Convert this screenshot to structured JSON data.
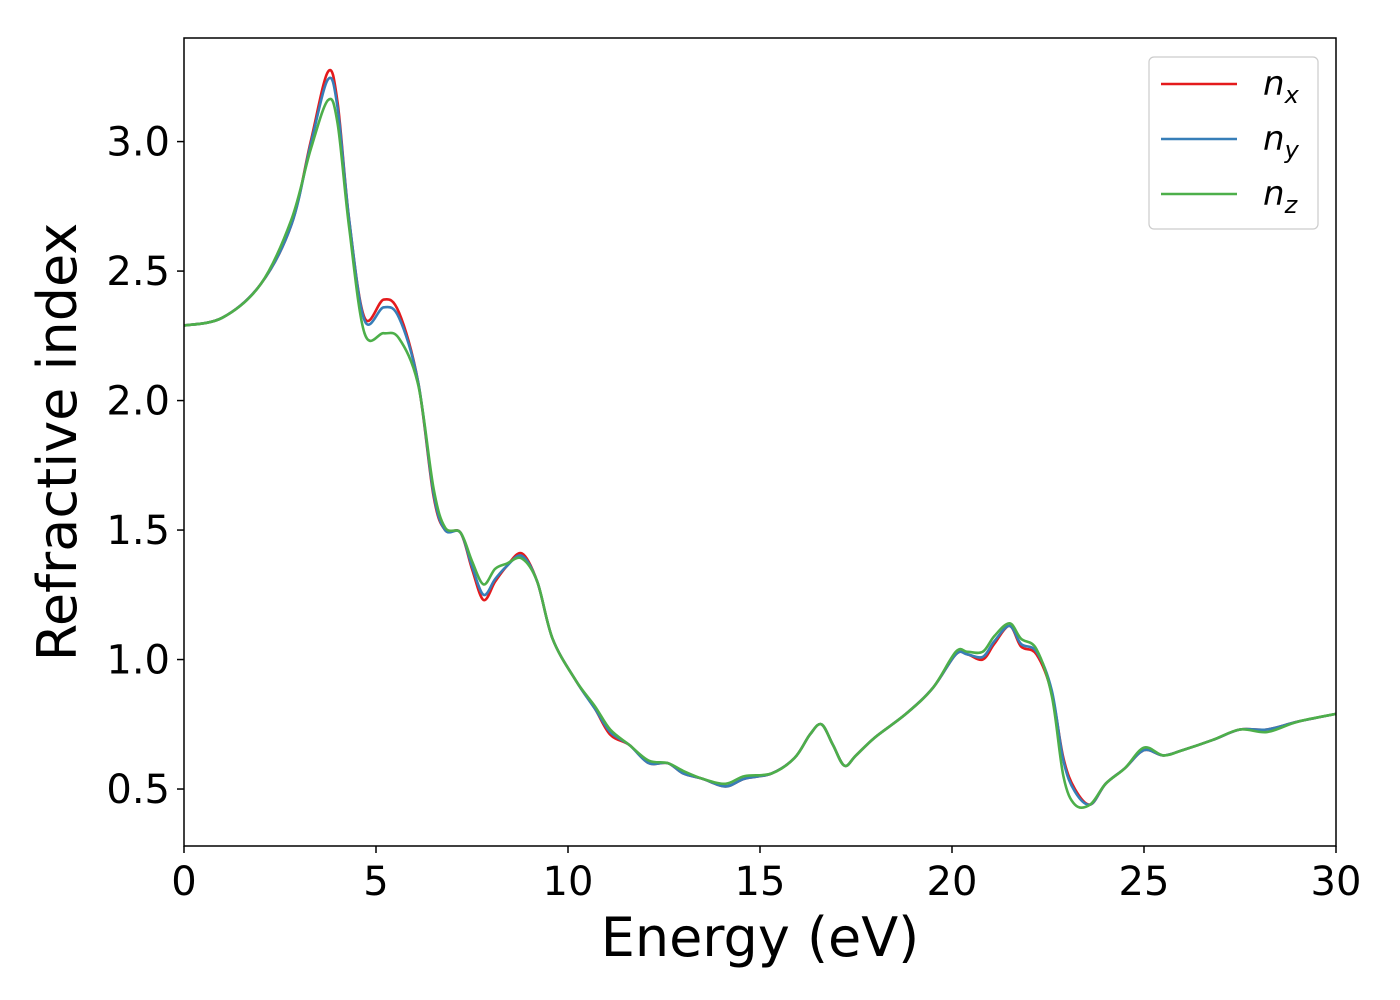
{
  "chart_data": {
    "type": "line",
    "xlabel": "Energy (eV)",
    "ylabel": "Refractive index",
    "xlim": [
      0,
      30
    ],
    "ylim": [
      0.28,
      3.4
    ],
    "xticks": [
      "0",
      "5",
      "10",
      "15",
      "20",
      "25",
      "30"
    ],
    "yticks": [
      "0.5",
      "1.0",
      "1.5",
      "2.0",
      "2.5",
      "3.0"
    ],
    "grid": false,
    "legend_position": "top-right",
    "series": [
      {
        "name": "n",
        "subscript": "x",
        "color": "#e41a1c",
        "points": [
          [
            0,
            2.29
          ],
          [
            1,
            2.32
          ],
          [
            2,
            2.45
          ],
          [
            2.8,
            2.68
          ],
          [
            3.3,
            3.0
          ],
          [
            3.75,
            3.27
          ],
          [
            4.0,
            3.15
          ],
          [
            4.3,
            2.7
          ],
          [
            4.7,
            2.32
          ],
          [
            5.2,
            2.39
          ],
          [
            5.6,
            2.34
          ],
          [
            6.1,
            2.07
          ],
          [
            6.5,
            1.63
          ],
          [
            6.8,
            1.5
          ],
          [
            7.2,
            1.49
          ],
          [
            7.5,
            1.35
          ],
          [
            7.8,
            1.23
          ],
          [
            8.1,
            1.3
          ],
          [
            8.4,
            1.36
          ],
          [
            8.8,
            1.41
          ],
          [
            9.2,
            1.3
          ],
          [
            9.6,
            1.08
          ],
          [
            10.2,
            0.92
          ],
          [
            10.7,
            0.81
          ],
          [
            11.1,
            0.71
          ],
          [
            11.6,
            0.67
          ],
          [
            12.1,
            0.6
          ],
          [
            12.6,
            0.6
          ],
          [
            13.0,
            0.56
          ],
          [
            13.5,
            0.54
          ],
          [
            14.1,
            0.51
          ],
          [
            14.6,
            0.54
          ],
          [
            15.3,
            0.56
          ],
          [
            15.9,
            0.62
          ],
          [
            16.3,
            0.71
          ],
          [
            16.6,
            0.75
          ],
          [
            16.9,
            0.67
          ],
          [
            17.2,
            0.59
          ],
          [
            17.5,
            0.63
          ],
          [
            18.0,
            0.7
          ],
          [
            18.8,
            0.79
          ],
          [
            19.5,
            0.89
          ],
          [
            20.1,
            1.02
          ],
          [
            20.4,
            1.02
          ],
          [
            20.8,
            1.0
          ],
          [
            21.1,
            1.06
          ],
          [
            21.5,
            1.13
          ],
          [
            21.8,
            1.05
          ],
          [
            22.2,
            1.02
          ],
          [
            22.6,
            0.87
          ],
          [
            22.9,
            0.62
          ],
          [
            23.2,
            0.5
          ],
          [
            23.6,
            0.44
          ],
          [
            24.0,
            0.52
          ],
          [
            24.5,
            0.58
          ],
          [
            25.0,
            0.65
          ],
          [
            25.5,
            0.63
          ],
          [
            26.0,
            0.65
          ],
          [
            26.8,
            0.69
          ],
          [
            27.5,
            0.73
          ],
          [
            28.2,
            0.73
          ],
          [
            29.0,
            0.76
          ],
          [
            30,
            0.79
          ]
        ]
      },
      {
        "name": "n",
        "subscript": "y",
        "color": "#377eb8",
        "points": [
          [
            0,
            2.29
          ],
          [
            1,
            2.32
          ],
          [
            2,
            2.45
          ],
          [
            2.8,
            2.68
          ],
          [
            3.3,
            2.99
          ],
          [
            3.75,
            3.24
          ],
          [
            4.0,
            3.13
          ],
          [
            4.3,
            2.7
          ],
          [
            4.7,
            2.31
          ],
          [
            5.2,
            2.36
          ],
          [
            5.6,
            2.32
          ],
          [
            6.1,
            2.07
          ],
          [
            6.5,
            1.64
          ],
          [
            6.8,
            1.5
          ],
          [
            7.2,
            1.49
          ],
          [
            7.5,
            1.36
          ],
          [
            7.8,
            1.25
          ],
          [
            8.1,
            1.31
          ],
          [
            8.4,
            1.36
          ],
          [
            8.8,
            1.4
          ],
          [
            9.2,
            1.3
          ],
          [
            9.6,
            1.08
          ],
          [
            10.2,
            0.92
          ],
          [
            10.7,
            0.81
          ],
          [
            11.1,
            0.72
          ],
          [
            11.6,
            0.67
          ],
          [
            12.1,
            0.6
          ],
          [
            12.6,
            0.6
          ],
          [
            13.0,
            0.56
          ],
          [
            13.5,
            0.54
          ],
          [
            14.1,
            0.51
          ],
          [
            14.6,
            0.54
          ],
          [
            15.3,
            0.56
          ],
          [
            15.9,
            0.62
          ],
          [
            16.3,
            0.71
          ],
          [
            16.6,
            0.75
          ],
          [
            16.9,
            0.67
          ],
          [
            17.2,
            0.59
          ],
          [
            17.5,
            0.63
          ],
          [
            18.0,
            0.7
          ],
          [
            18.8,
            0.79
          ],
          [
            19.5,
            0.89
          ],
          [
            20.1,
            1.02
          ],
          [
            20.4,
            1.02
          ],
          [
            20.8,
            1.01
          ],
          [
            21.1,
            1.07
          ],
          [
            21.5,
            1.13
          ],
          [
            21.8,
            1.06
          ],
          [
            22.2,
            1.03
          ],
          [
            22.6,
            0.88
          ],
          [
            22.9,
            0.61
          ],
          [
            23.2,
            0.49
          ],
          [
            23.6,
            0.44
          ],
          [
            24.0,
            0.52
          ],
          [
            24.5,
            0.58
          ],
          [
            25.0,
            0.65
          ],
          [
            25.5,
            0.63
          ],
          [
            26.0,
            0.65
          ],
          [
            26.8,
            0.69
          ],
          [
            27.5,
            0.73
          ],
          [
            28.2,
            0.73
          ],
          [
            29.0,
            0.76
          ],
          [
            30,
            0.79
          ]
        ]
      },
      {
        "name": "n",
        "subscript": "z",
        "color": "#4daf4a",
        "points": [
          [
            0,
            2.29
          ],
          [
            1,
            2.32
          ],
          [
            2,
            2.45
          ],
          [
            2.8,
            2.7
          ],
          [
            3.3,
            2.97
          ],
          [
            3.75,
            3.16
          ],
          [
            4.0,
            3.07
          ],
          [
            4.3,
            2.67
          ],
          [
            4.7,
            2.26
          ],
          [
            5.2,
            2.26
          ],
          [
            5.6,
            2.24
          ],
          [
            6.1,
            2.06
          ],
          [
            6.5,
            1.66
          ],
          [
            6.8,
            1.51
          ],
          [
            7.2,
            1.49
          ],
          [
            7.5,
            1.38
          ],
          [
            7.8,
            1.29
          ],
          [
            8.1,
            1.35
          ],
          [
            8.4,
            1.37
          ],
          [
            8.8,
            1.39
          ],
          [
            9.2,
            1.3
          ],
          [
            9.6,
            1.08
          ],
          [
            10.2,
            0.92
          ],
          [
            10.7,
            0.82
          ],
          [
            11.1,
            0.73
          ],
          [
            11.6,
            0.67
          ],
          [
            12.1,
            0.61
          ],
          [
            12.6,
            0.6
          ],
          [
            13.0,
            0.57
          ],
          [
            13.5,
            0.54
          ],
          [
            14.1,
            0.52
          ],
          [
            14.6,
            0.55
          ],
          [
            15.3,
            0.56
          ],
          [
            15.9,
            0.62
          ],
          [
            16.3,
            0.71
          ],
          [
            16.6,
            0.75
          ],
          [
            16.9,
            0.67
          ],
          [
            17.2,
            0.59
          ],
          [
            17.5,
            0.63
          ],
          [
            18.0,
            0.7
          ],
          [
            18.8,
            0.79
          ],
          [
            19.5,
            0.89
          ],
          [
            20.1,
            1.03
          ],
          [
            20.4,
            1.03
          ],
          [
            20.8,
            1.03
          ],
          [
            21.1,
            1.09
          ],
          [
            21.5,
            1.14
          ],
          [
            21.8,
            1.08
          ],
          [
            22.2,
            1.04
          ],
          [
            22.6,
            0.86
          ],
          [
            22.9,
            0.55
          ],
          [
            23.2,
            0.44
          ],
          [
            23.6,
            0.44
          ],
          [
            24.0,
            0.52
          ],
          [
            24.5,
            0.58
          ],
          [
            25.0,
            0.66
          ],
          [
            25.5,
            0.63
          ],
          [
            26.0,
            0.65
          ],
          [
            26.8,
            0.69
          ],
          [
            27.5,
            0.73
          ],
          [
            28.2,
            0.72
          ],
          [
            29.0,
            0.76
          ],
          [
            30,
            0.79
          ]
        ]
      }
    ]
  }
}
